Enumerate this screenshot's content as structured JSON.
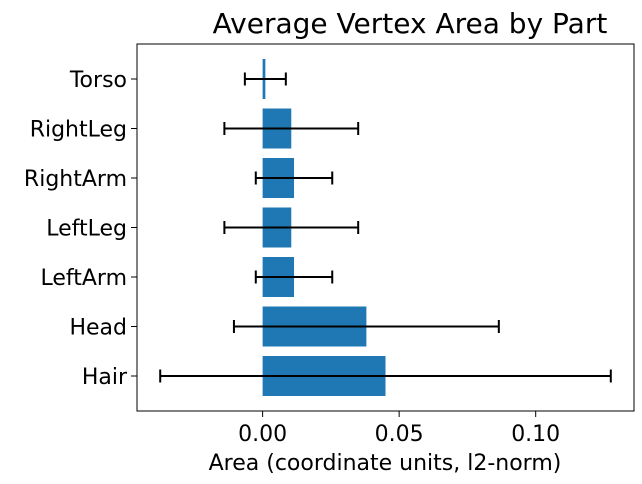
{
  "chart_data": {
    "type": "bar",
    "orientation": "horizontal",
    "title": "Average Vertex Area by Part",
    "xlabel": "Area (coordinate units, l2-norm)",
    "ylabel": "",
    "xlim": [
      -0.046,
      0.136
    ],
    "x_ticks": [
      0.0,
      0.05,
      0.1
    ],
    "x_tick_labels": [
      "0.00",
      "0.05",
      "0.10"
    ],
    "grid": false,
    "bar_color": "#1f77b4",
    "errorbar_color": "#000000",
    "categories": [
      "Hair",
      "Head",
      "LeftArm",
      "LeftLeg",
      "RightArm",
      "RightLeg",
      "Torso"
    ],
    "values": [
      0.045,
      0.038,
      0.0115,
      0.0105,
      0.0115,
      0.0105,
      0.001
    ],
    "errors": [
      0.0825,
      0.0485,
      0.014,
      0.0245,
      0.014,
      0.0245,
      0.0075
    ]
  }
}
